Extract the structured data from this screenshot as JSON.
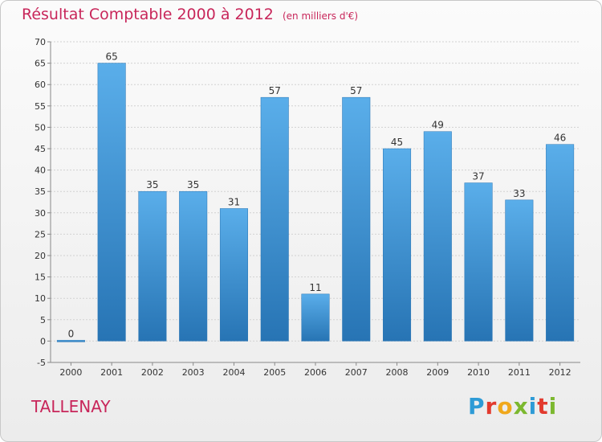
{
  "header": {
    "title": "Résultat Comptable 2000 à 2012",
    "subtitle": "(en milliers d'€)"
  },
  "footer": {
    "town": "TALLENAY",
    "logo": {
      "text": "Proxiti",
      "letter_colors": [
        "#2e9bd6",
        "#e23a2e",
        "#f0a81c",
        "#7cb82f",
        "#2e9bd6",
        "#e23a2e",
        "#7cb82f"
      ]
    }
  },
  "colors": {
    "bar": "#3a8fd3",
    "bar_light": "#5aaeea",
    "bar_dark": "#2774b4",
    "grid": "#d2d2d2",
    "axis_text": "#333333"
  },
  "chart_data": {
    "type": "bar",
    "title": "Résultat Comptable 2000 à 2012",
    "subtitle": "(en milliers d'€)",
    "categories": [
      "2000",
      "2001",
      "2002",
      "2003",
      "2004",
      "2005",
      "2006",
      "2007",
      "2008",
      "2009",
      "2010",
      "2011",
      "2012"
    ],
    "values": [
      0,
      65,
      35,
      35,
      31,
      57,
      11,
      57,
      45,
      49,
      37,
      33,
      46
    ],
    "ylim": [
      -5,
      70
    ],
    "yticks": [
      -5,
      0,
      5,
      10,
      15,
      20,
      25,
      30,
      35,
      40,
      45,
      50,
      55,
      60,
      65,
      70
    ],
    "xlabel": "",
    "ylabel": "",
    "grid": true,
    "legend": "none"
  }
}
